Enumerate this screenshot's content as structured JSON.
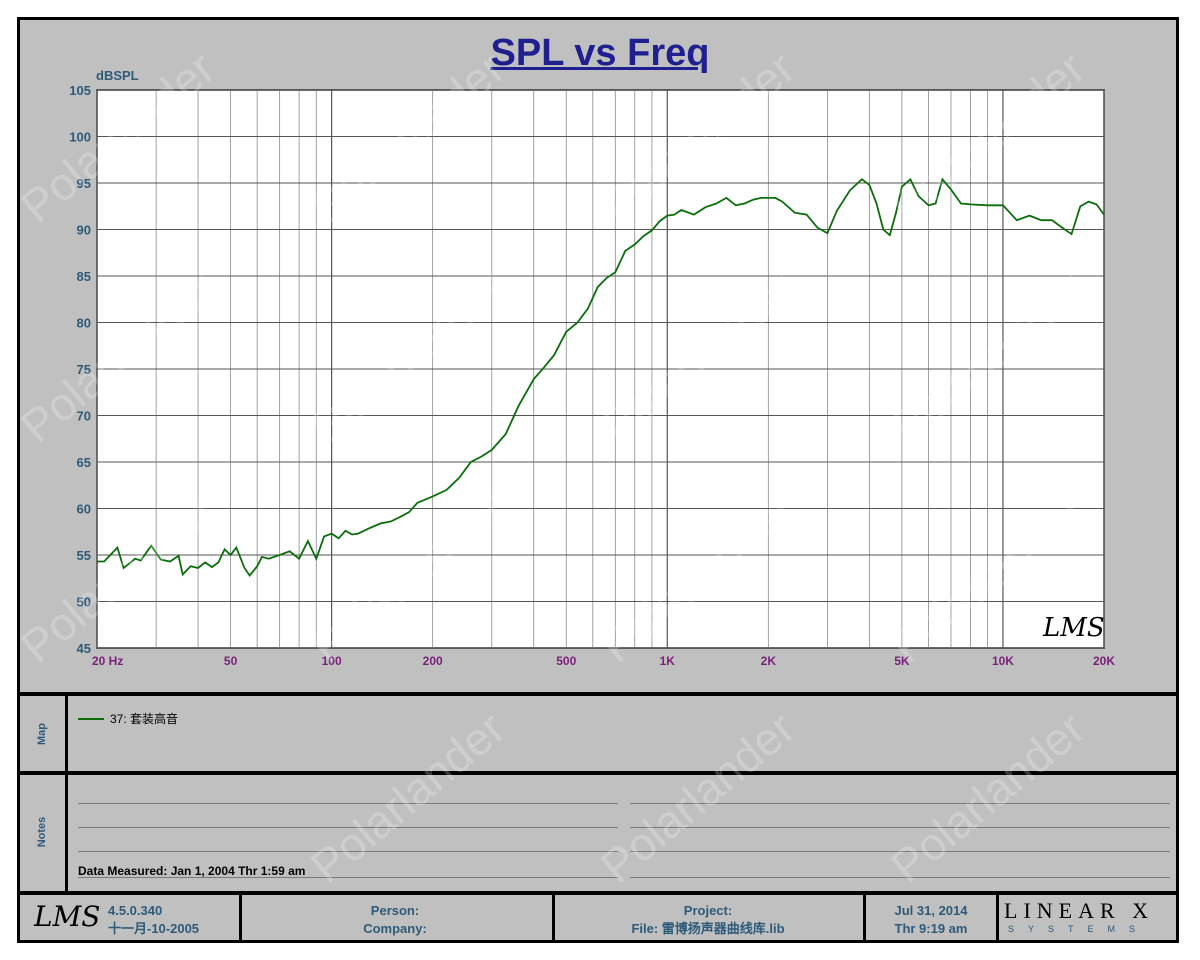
{
  "chart_data": {
    "type": "line",
    "title": "SPL vs Freq",
    "ylabel": "dBSPL",
    "xlabel": "",
    "x_scale": "log",
    "xlim": [
      20,
      20000
    ],
    "ylim": [
      45,
      105
    ],
    "yticks": [
      45,
      50,
      55,
      60,
      65,
      70,
      75,
      80,
      85,
      90,
      95,
      100,
      105
    ],
    "xticks": [
      {
        "value": 20,
        "label": "20  Hz"
      },
      {
        "value": 50,
        "label": "50"
      },
      {
        "value": 100,
        "label": "100"
      },
      {
        "value": 200,
        "label": "200"
      },
      {
        "value": 500,
        "label": "500"
      },
      {
        "value": 1000,
        "label": "1K"
      },
      {
        "value": 2000,
        "label": "2K"
      },
      {
        "value": 5000,
        "label": "5K"
      },
      {
        "value": 10000,
        "label": "10K"
      },
      {
        "value": 20000,
        "label": "20K"
      }
    ],
    "grid": true,
    "series": [
      {
        "name": "37: 套装高音",
        "color": "#0b6e0b",
        "x": [
          20,
          21,
          23,
          24,
          26,
          27,
          29,
          31,
          33,
          35,
          36,
          38,
          40,
          42,
          44,
          46,
          48,
          50,
          52,
          55,
          57,
          60,
          62,
          65,
          70,
          75,
          80,
          85,
          90,
          95,
          100,
          105,
          110,
          115,
          120,
          130,
          140,
          150,
          160,
          170,
          180,
          200,
          220,
          240,
          260,
          280,
          300,
          330,
          360,
          400,
          430,
          460,
          500,
          540,
          580,
          620,
          660,
          700,
          750,
          800,
          850,
          900,
          950,
          1000,
          1050,
          1100,
          1200,
          1300,
          1400,
          1500,
          1600,
          1700,
          1800,
          1900,
          2000,
          2100,
          2200,
          2400,
          2600,
          2800,
          3000,
          3200,
          3500,
          3800,
          4000,
          4200,
          4400,
          4600,
          4800,
          5000,
          5300,
          5600,
          6000,
          6300,
          6600,
          7000,
          7500,
          8000,
          9000,
          10000,
          11000,
          12000,
          13000,
          14000,
          15000,
          16000,
          17000,
          18000,
          19000,
          20000
        ],
        "values": [
          54.3,
          54.3,
          55.8,
          53.6,
          54.6,
          54.4,
          56.0,
          54.5,
          54.3,
          54.9,
          52.9,
          53.8,
          53.6,
          54.2,
          53.7,
          54.2,
          55.6,
          55.0,
          55.8,
          53.6,
          52.8,
          53.8,
          54.8,
          54.6,
          55.0,
          55.4,
          54.6,
          56.5,
          54.6,
          57.0,
          57.3,
          56.8,
          57.6,
          57.2,
          57.3,
          57.9,
          58.4,
          58.6,
          59.1,
          59.6,
          60.6,
          61.3,
          62.0,
          63.3,
          65.0,
          65.6,
          66.3,
          68.0,
          71.0,
          73.9,
          75.2,
          76.5,
          79.0,
          80.0,
          81.5,
          83.8,
          84.8,
          85.4,
          87.7,
          88.4,
          89.3,
          89.9,
          90.9,
          91.5,
          91.6,
          92.1,
          91.6,
          92.4,
          92.8,
          93.4,
          92.6,
          92.8,
          93.2,
          93.4,
          93.4,
          93.4,
          93.0,
          91.8,
          91.6,
          90.2,
          89.6,
          92.0,
          94.2,
          95.4,
          94.8,
          92.8,
          90.0,
          89.4,
          91.8,
          94.6,
          95.4,
          93.6,
          92.6,
          92.8,
          95.4,
          94.3,
          92.8,
          92.7,
          92.6,
          92.6,
          91.0,
          91.5,
          91.0,
          91.0,
          90.2,
          89.5,
          92.5,
          93.0,
          92.7,
          91.6
        ]
      }
    ]
  },
  "map_panel": {
    "label": "Map",
    "legend_text": "37: 套装高音",
    "legend_color": "#0b6e0b"
  },
  "notes_panel": {
    "label": "Notes",
    "measured": "Data Measured: Jan  1, 2004  Thr  1:59 am"
  },
  "footer": {
    "logo": "LMS",
    "version": "4.5.0.340",
    "version_date": "十一月-10-2005",
    "person_label": "Person:",
    "company_label": "Company:",
    "project_label": "Project:",
    "file_label": "File: 雷博扬声器曲线库.lib",
    "date": "Jul 31, 2014",
    "time": "Thr  9:19 am",
    "brand_main": "LINEAR X",
    "brand_sub": "SYSTEMS"
  },
  "chart_logo": "LMS",
  "watermark": "Polarlander",
  "colors": {
    "background": "#c0c0c0",
    "title": "#1f1f8f",
    "axis_label": "#2e5a7a",
    "tick_x": "#7a1f7a",
    "curve": "#0b6e0b"
  }
}
